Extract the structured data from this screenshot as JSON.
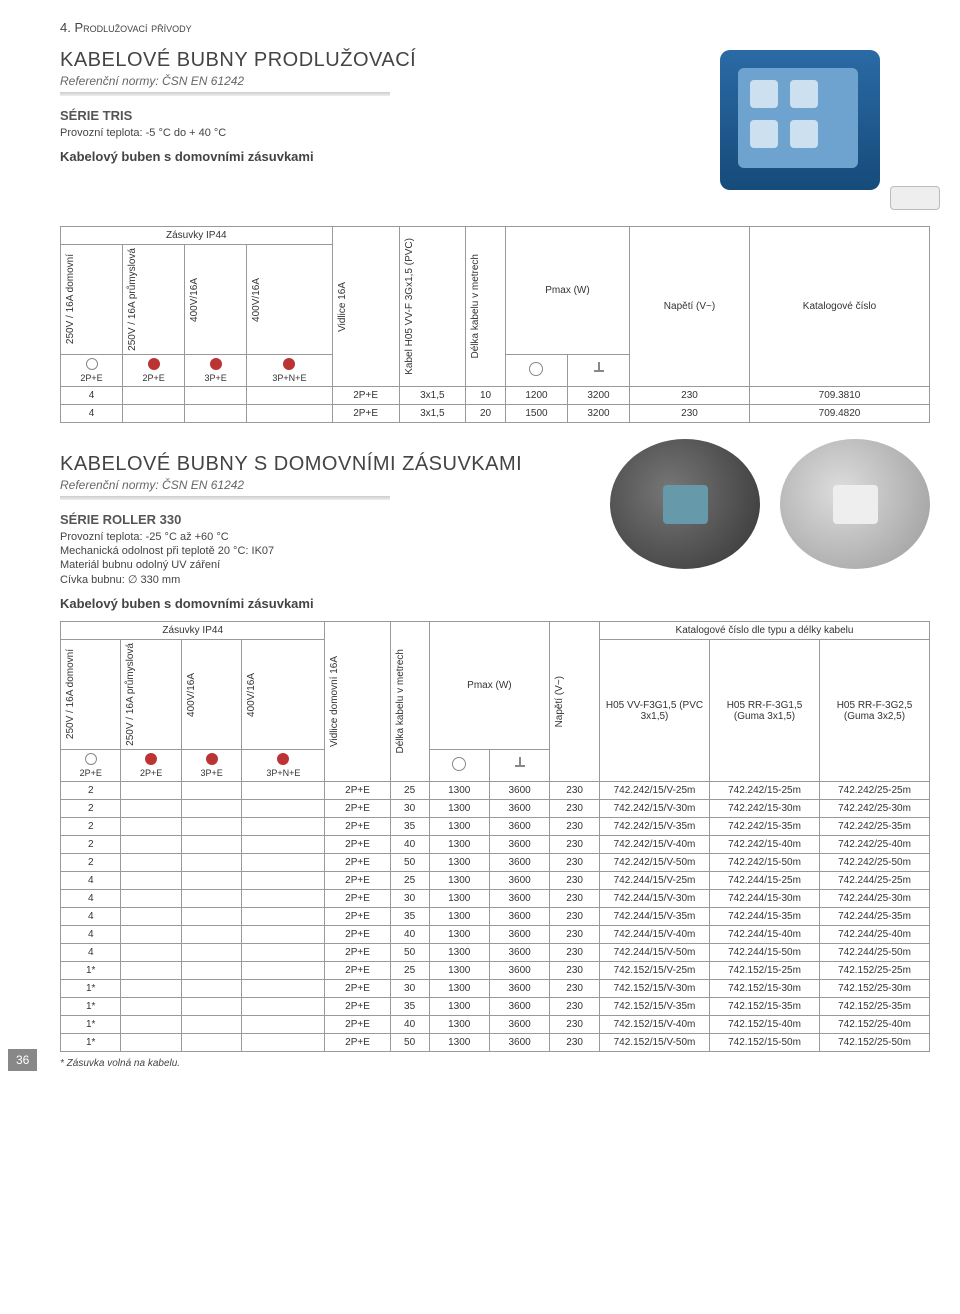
{
  "chapter": "4. Prodlužovací přívody",
  "section1": {
    "title": "KABELOVÉ BUBNY PRODLUŽOVACÍ",
    "norm": "Referenční normy: ČSN EN 61242",
    "series": "SÉRIE TRIS",
    "temp": "Provozní teplota: -5 °C do + 40 °C",
    "subtitle": "Kabelový buben s domovními zásuvkami"
  },
  "table1": {
    "group_socket": "Zásuvky IP44",
    "col_250d": "250V / 16A domovní",
    "col_250p": "250V / 16A průmyslová",
    "col_400a": "400V/16A",
    "col_400b": "400V/16A",
    "col_vidlice": "Vidlice 16A",
    "col_kabel": "Kabel H05 VV-F 3Gx1,5 (PVC)",
    "col_delka": "Délka kabelu v metrech",
    "col_pmax": "Pmax (W)",
    "col_napeti": "Napětí (V~)",
    "col_katalog": "Katalogové číslo",
    "plug_2pe": "2P+E",
    "plug_3pe": "3P+E",
    "plug_3pne": "3P+N+E",
    "rows": [
      {
        "c": "4",
        "v": "2P+E",
        "kb": "3x1,5",
        "l": "10",
        "p1": "1200",
        "p2": "3200",
        "n": "230",
        "k": "709.3810"
      },
      {
        "c": "4",
        "v": "2P+E",
        "kb": "3x1,5",
        "l": "20",
        "p1": "1500",
        "p2": "3200",
        "n": "230",
        "k": "709.4820"
      }
    ]
  },
  "section2": {
    "title": "KABELOVÉ BUBNY S DOMOVNÍMI ZÁSUVKAMI",
    "norm": "Referenční normy: ČSN EN 61242",
    "series": "SÉRIE ROLLER 330",
    "l1": "Provozní teplota: -25 °C až +60 °C",
    "l2": "Mechanická odolnost při teplotě 20 °C: IK07",
    "l3": "Materiál bubnu odolný UV záření",
    "l4": "Cívka bubnu: ∅ 330 mm",
    "subtitle": "Kabelový buben s domovními zásuvkami"
  },
  "table2": {
    "group_socket": "Zásuvky IP44",
    "col_250d": "250V / 16A domovní",
    "col_250p": "250V / 16A průmyslová",
    "col_400a": "400V/16A",
    "col_400b": "400V/16A",
    "col_vidlice": "Vidlice domovní 16A",
    "col_delka": "Délka kabelu v metrech",
    "col_pmax": "Pmax (W)",
    "col_napeti": "Napětí (V~)",
    "col_katalog": "Katalogové číslo dle typu a délky kabelu",
    "sub_k1": "H05 VV-F3G1,5 (PVC 3x1,5)",
    "sub_k2": "H05 RR-F-3G1,5 (Guma 3x1,5)",
    "sub_k3": "H05 RR-F-3G2,5 (Guma 3x2,5)",
    "plug_2pe": "2P+E",
    "plug_3pe": "3P+E",
    "plug_3pne": "3P+N+E",
    "rows": [
      {
        "c": "2",
        "v": "2P+E",
        "l": "25",
        "p1": "1300",
        "p2": "3600",
        "n": "230",
        "k1": "742.242/15/V-25m",
        "k2": "742.242/15-25m",
        "k3": "742.242/25-25m"
      },
      {
        "c": "2",
        "v": "2P+E",
        "l": "30",
        "p1": "1300",
        "p2": "3600",
        "n": "230",
        "k1": "742.242/15/V-30m",
        "k2": "742.242/15-30m",
        "k3": "742.242/25-30m"
      },
      {
        "c": "2",
        "v": "2P+E",
        "l": "35",
        "p1": "1300",
        "p2": "3600",
        "n": "230",
        "k1": "742.242/15/V-35m",
        "k2": "742.242/15-35m",
        "k3": "742.242/25-35m"
      },
      {
        "c": "2",
        "v": "2P+E",
        "l": "40",
        "p1": "1300",
        "p2": "3600",
        "n": "230",
        "k1": "742.242/15/V-40m",
        "k2": "742.242/15-40m",
        "k3": "742.242/25-40m"
      },
      {
        "c": "2",
        "v": "2P+E",
        "l": "50",
        "p1": "1300",
        "p2": "3600",
        "n": "230",
        "k1": "742.242/15/V-50m",
        "k2": "742.242/15-50m",
        "k3": "742.242/25-50m"
      },
      {
        "c": "4",
        "v": "2P+E",
        "l": "25",
        "p1": "1300",
        "p2": "3600",
        "n": "230",
        "k1": "742.244/15/V-25m",
        "k2": "742.244/15-25m",
        "k3": "742.244/25-25m"
      },
      {
        "c": "4",
        "v": "2P+E",
        "l": "30",
        "p1": "1300",
        "p2": "3600",
        "n": "230",
        "k1": "742.244/15/V-30m",
        "k2": "742.244/15-30m",
        "k3": "742.244/25-30m"
      },
      {
        "c": "4",
        "v": "2P+E",
        "l": "35",
        "p1": "1300",
        "p2": "3600",
        "n": "230",
        "k1": "742.244/15/V-35m",
        "k2": "742.244/15-35m",
        "k3": "742.244/25-35m"
      },
      {
        "c": "4",
        "v": "2P+E",
        "l": "40",
        "p1": "1300",
        "p2": "3600",
        "n": "230",
        "k1": "742.244/15/V-40m",
        "k2": "742.244/15-40m",
        "k3": "742.244/25-40m"
      },
      {
        "c": "4",
        "v": "2P+E",
        "l": "50",
        "p1": "1300",
        "p2": "3600",
        "n": "230",
        "k1": "742.244/15/V-50m",
        "k2": "742.244/15-50m",
        "k3": "742.244/25-50m"
      },
      {
        "c": "1*",
        "v": "2P+E",
        "l": "25",
        "p1": "1300",
        "p2": "3600",
        "n": "230",
        "k1": "742.152/15/V-25m",
        "k2": "742.152/15-25m",
        "k3": "742.152/25-25m"
      },
      {
        "c": "1*",
        "v": "2P+E",
        "l": "30",
        "p1": "1300",
        "p2": "3600",
        "n": "230",
        "k1": "742.152/15/V-30m",
        "k2": "742.152/15-30m",
        "k3": "742.152/25-30m"
      },
      {
        "c": "1*",
        "v": "2P+E",
        "l": "35",
        "p1": "1300",
        "p2": "3600",
        "n": "230",
        "k1": "742.152/15/V-35m",
        "k2": "742.152/15-35m",
        "k3": "742.152/25-35m"
      },
      {
        "c": "1*",
        "v": "2P+E",
        "l": "40",
        "p1": "1300",
        "p2": "3600",
        "n": "230",
        "k1": "742.152/15/V-40m",
        "k2": "742.152/15-40m",
        "k3": "742.152/25-40m"
      },
      {
        "c": "1*",
        "v": "2P+E",
        "l": "50",
        "p1": "1300",
        "p2": "3600",
        "n": "230",
        "k1": "742.152/15/V-50m",
        "k2": "742.152/15-50m",
        "k3": "742.152/25-50m"
      }
    ]
  },
  "footnote": "* Zásuvka volná na kabelu.",
  "pagenum": "36"
}
